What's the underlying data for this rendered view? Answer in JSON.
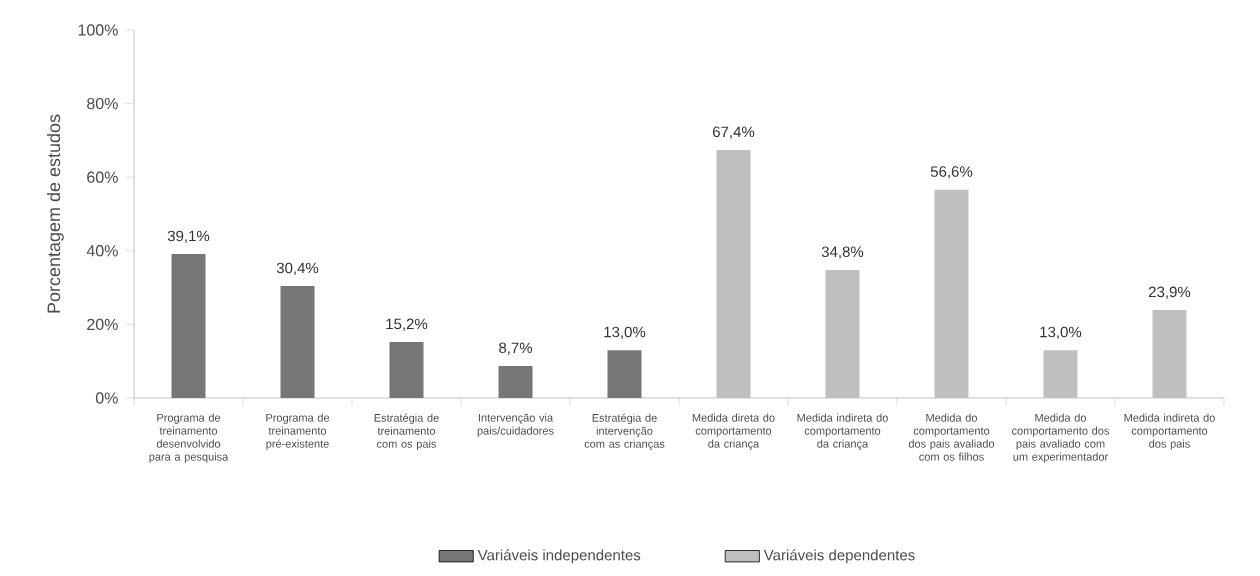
{
  "chart_data": {
    "type": "bar",
    "ylabel": "Porcentagem de estudos",
    "categories": [
      "Programa de treinamento desenvolvido para a pesquisa",
      "Programa de treinamento pré-existente",
      "Estratégia de treinamento com os pais",
      "Intervenção via pais/cuidadores",
      "Estratégia de intervenção com as crianças",
      "Medida direta do comportamento da criança",
      "Medida indireta do comportamento da criança",
      "Medida do comportamento dos pais avaliado com os filhos",
      "Medida do comportamento dos pais avaliado com um experimentador",
      "Medida indireta do comportamento dos pais"
    ],
    "series": [
      {
        "name": "Variáveis independentes",
        "color": "#767676",
        "values": [
          39.1,
          30.4,
          15.2,
          8.7,
          13.0,
          null,
          null,
          null,
          null,
          null
        ],
        "value_labels": [
          "39,1%",
          "30,4%",
          "15,2%",
          "8,7%",
          "13,0%",
          null,
          null,
          null,
          null,
          null
        ]
      },
      {
        "name": "Variáveis dependentes",
        "color": "#bfbfbf",
        "values": [
          null,
          null,
          null,
          null,
          null,
          67.4,
          34.8,
          56.6,
          13.0,
          23.9
        ],
        "value_labels": [
          null,
          null,
          null,
          null,
          null,
          "67,4%",
          "34,8%",
          "56,6%",
          "13,0%",
          "23,9%"
        ]
      }
    ],
    "ylim": [
      0,
      100
    ],
    "yticks": [
      {
        "value": 0,
        "label": "0%"
      },
      {
        "value": 20,
        "label": "20%"
      },
      {
        "value": 40,
        "label": "40%"
      },
      {
        "value": 60,
        "label": "60%"
      },
      {
        "value": 80,
        "label": "80%"
      },
      {
        "value": 100,
        "label": "100%"
      }
    ],
    "grid": false,
    "legend": "bottom"
  }
}
